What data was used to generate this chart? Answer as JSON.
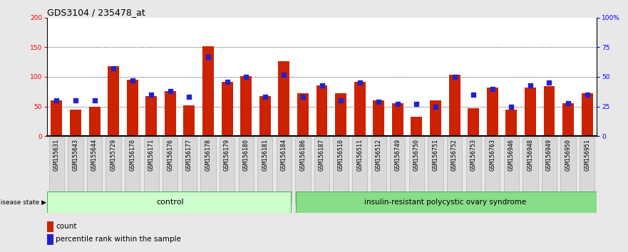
{
  "title": "GDS3104 / 235478_at",
  "samples": [
    "GSM155631",
    "GSM155643",
    "GSM155644",
    "GSM155729",
    "GSM156170",
    "GSM156171",
    "GSM156176",
    "GSM156177",
    "GSM156178",
    "GSM156179",
    "GSM156180",
    "GSM156181",
    "GSM156184",
    "GSM156186",
    "GSM156187",
    "GSM156510",
    "GSM156511",
    "GSM156512",
    "GSM156749",
    "GSM156750",
    "GSM156751",
    "GSM156752",
    "GSM156753",
    "GSM156763",
    "GSM156946",
    "GSM156948",
    "GSM156949",
    "GSM156950",
    "GSM156951"
  ],
  "counts": [
    60,
    45,
    50,
    118,
    95,
    68,
    76,
    52,
    152,
    92,
    101,
    68,
    127,
    72,
    85,
    72,
    91,
    60,
    55,
    33,
    60,
    103,
    47,
    82,
    45,
    82,
    84,
    55,
    72
  ],
  "percentile_ranks": [
    30,
    30,
    30,
    57,
    47,
    35,
    38,
    33,
    67,
    46,
    50,
    33,
    52,
    33,
    43,
    30,
    45,
    29,
    27,
    27,
    25,
    50,
    35,
    40,
    25,
    43,
    45,
    28,
    35
  ],
  "n_control": 13,
  "n_insulin": 16,
  "group_labels": [
    "control",
    "insulin-resistant polycystic ovary syndrome"
  ],
  "bar_color": "#cc2200",
  "dot_color": "#2222cc",
  "ylim_left": [
    0,
    200
  ],
  "ylim_right": [
    0,
    100
  ],
  "y_ticks_left": [
    0,
    50,
    100,
    150,
    200
  ],
  "y_ticks_right": [
    0,
    25,
    50,
    75,
    100
  ],
  "y_tick_labels_right": [
    "0",
    "25",
    "50",
    "75",
    "100%"
  ],
  "background_color": "#e8e8e8",
  "plot_bg_color": "#ffffff",
  "group_bg_control": "#ccffcc",
  "group_bg_insulin": "#88dd88",
  "title_fontsize": 9,
  "tick_fontsize": 6.5,
  "label_fontsize": 8,
  "legend_fontsize": 7.5
}
